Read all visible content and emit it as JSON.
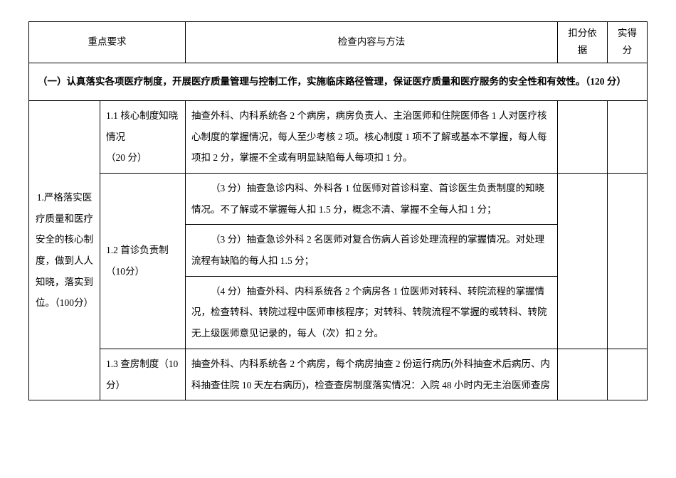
{
  "headers": {
    "key_req": "重点要求",
    "method": "检查内容与方法",
    "basis": "扣分依据",
    "score": "实得分"
  },
  "section_title": "（一）认真落实各项医疗制度，开展医疗质量管理与控制工作，实施临床路径管理，保证医疗质量和医疗服务的安全性和有效性。（120 分）",
  "block1": {
    "key_req": "1.严格落实医疗质量和医疗安全的核心制度，做到人人知晓，落实到位。（100分）",
    "rows": [
      {
        "sub": "1.1 核心制度知晓情况\n（20 分）",
        "method": "抽查外科、内科系统各 2 个病房，病房负责人、主治医师和住院医师各 1 人对医疗核心制度的掌握情况，每人至少考核 2 项。核心制度 1 项不了解或基本不掌握，每人每项扣 2 分，掌握不全或有明显缺陷每人每项扣 1 分。"
      },
      {
        "sub": "1.2 首诊负责制（10分）",
        "methods": [
          "（3 分）抽查急诊内科、外科各 1 位医师对首诊科室、首诊医生负责制度的知晓情况。不了解或不掌握每人扣 1.5 分，概念不清、掌握不全每人扣 1 分；",
          "（3 分）抽查急诊外科 2 名医师对复合伤病人首诊处理流程的掌握情况。对处理流程有缺陷的每人扣 1.5 分；",
          "（4 分）抽查外科、内科系统各 2 个病房各 1 位医师对转科、转院流程的掌握情况，检查转科、转院过程中医师审核程序；对转科、转院流程不掌握的或转科、转院无上级医师意见记录的，每人（次）扣 2 分。"
        ]
      },
      {
        "sub": "1.3 查房制度（10分）",
        "method": "抽查外科、内科系统各 2 个病房，每个病房抽查 2 份运行病历(外科抽查术后病历、内科抽查住院 10 天左右病历)，检查查房制度落实情况：入院 48 小时内无主治医师查房"
      }
    ]
  }
}
